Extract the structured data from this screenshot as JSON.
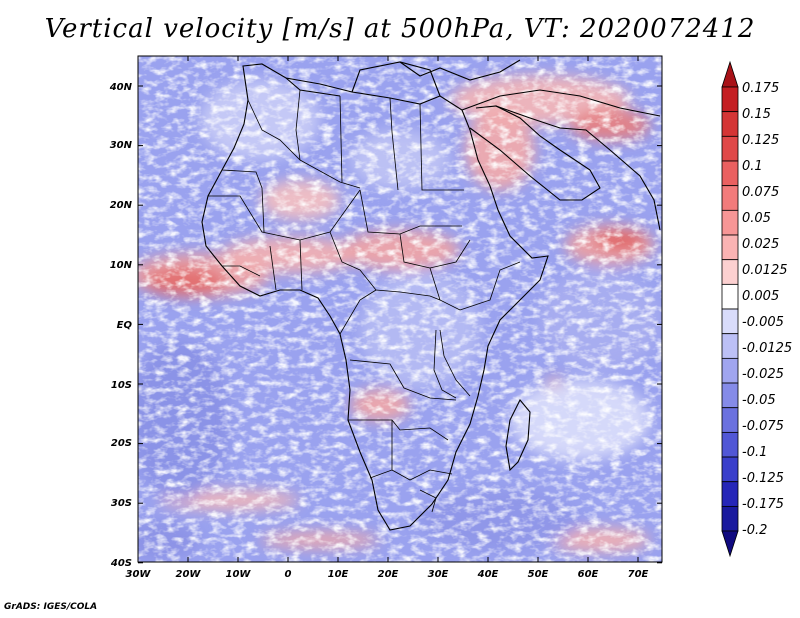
{
  "title": "Vertical velocity [m/s] at 500hPa, VT: 2020072412",
  "credit": "GrADS: IGES/COLA",
  "map": {
    "lat_labels": [
      "40N",
      "30N",
      "20N",
      "10N",
      "EQ",
      "10S",
      "20S",
      "30S",
      "40S"
    ],
    "lon_labels": [
      "30W",
      "20W",
      "10W",
      "0",
      "10E",
      "20E",
      "30E",
      "40E",
      "50E",
      "60E",
      "70E"
    ],
    "lat_range": [
      -40,
      45
    ],
    "lon_range": [
      -30,
      75
    ]
  },
  "colorbar": {
    "labels": [
      "0.175",
      "0.15",
      "0.125",
      "0.1",
      "0.075",
      "0.05",
      "0.025",
      "0.0125",
      "0.005",
      "-0.005",
      "-0.0125",
      "-0.025",
      "-0.05",
      "-0.075",
      "-0.1",
      "-0.125",
      "-0.175",
      "-0.2"
    ],
    "colors": [
      "#c41e22",
      "#d43535",
      "#e04848",
      "#ea6060",
      "#f27b7b",
      "#f79696",
      "#fab3b3",
      "#fcd0d0",
      "#ffffff",
      "#d9dcfb",
      "#bcc0f6",
      "#a0a5ef",
      "#858be8",
      "#6b71df",
      "#5157d6",
      "#3a3fcb",
      "#2626b8",
      "#1a1a9e"
    ],
    "top_arrow_color": "#a81218",
    "bottom_arrow_color": "#100a80"
  }
}
